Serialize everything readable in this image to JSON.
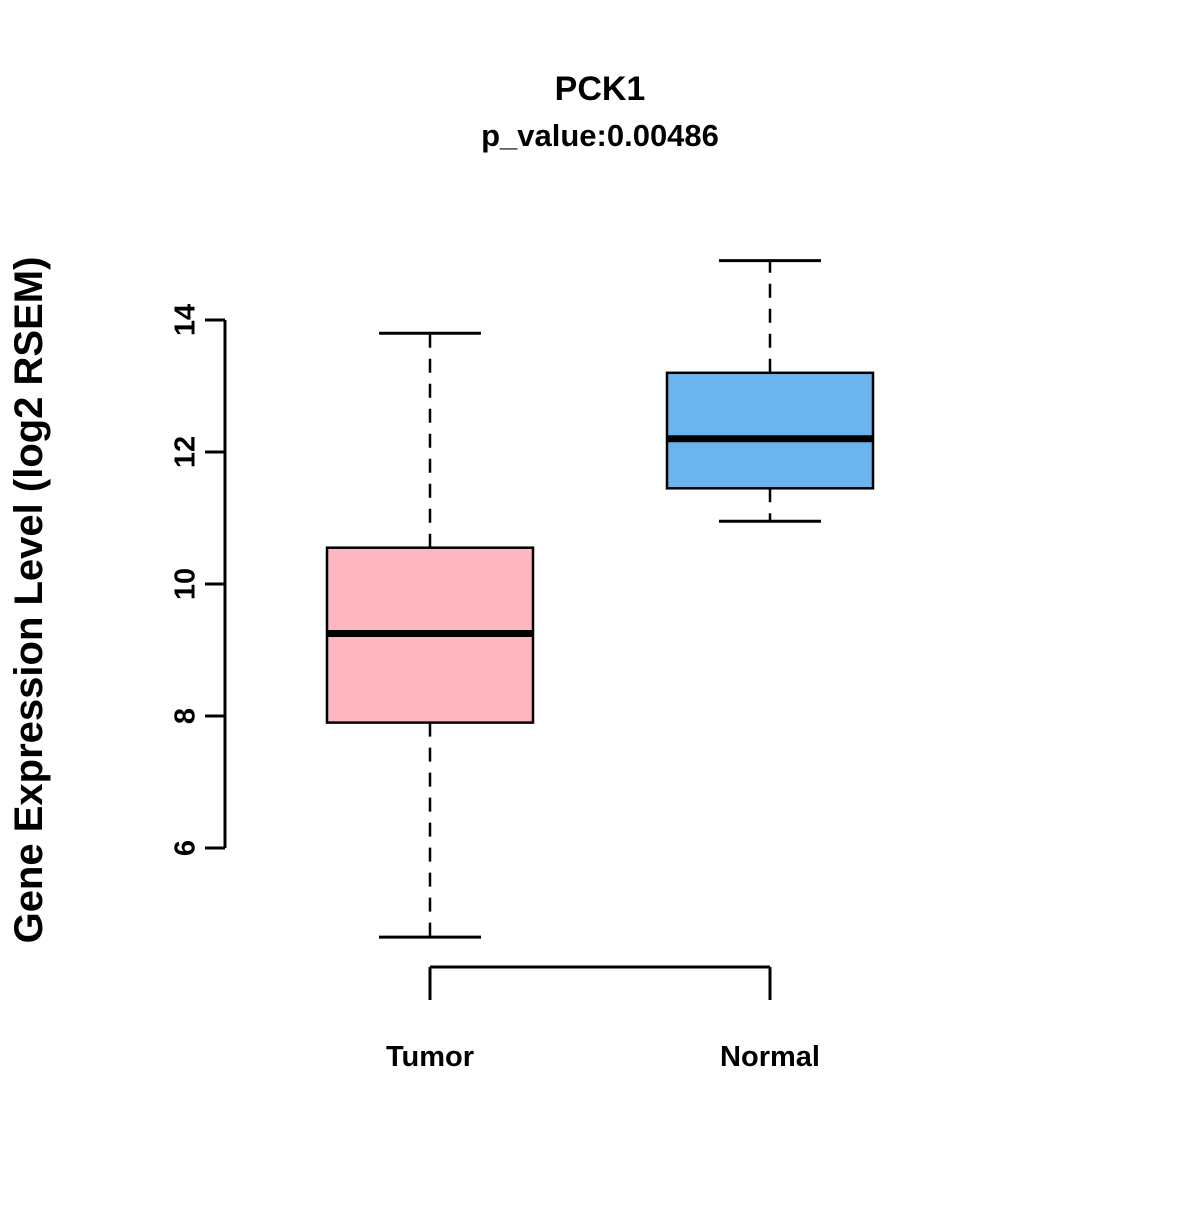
{
  "chart_data": {
    "type": "boxplot",
    "title": "PCK1",
    "subtitle": "p_value:0.00486",
    "ylabel": "Gene Expression Level (log2 RSEM)",
    "xlabel": "",
    "yticks": [
      6,
      8,
      10,
      12,
      14
    ],
    "y_axis_range": [
      6,
      14
    ],
    "grid": false,
    "legend": "none",
    "groups": [
      {
        "label": "Tumor",
        "color": "#FFB6C1",
        "whisker_low": 4.65,
        "q1": 7.9,
        "median": 9.25,
        "q3": 10.55,
        "whisker_high": 13.8
      },
      {
        "label": "Normal",
        "color": "#6CB4EE",
        "whisker_low": 10.95,
        "q1": 11.45,
        "median": 12.2,
        "q3": 13.2,
        "whisker_high": 14.9
      }
    ]
  }
}
